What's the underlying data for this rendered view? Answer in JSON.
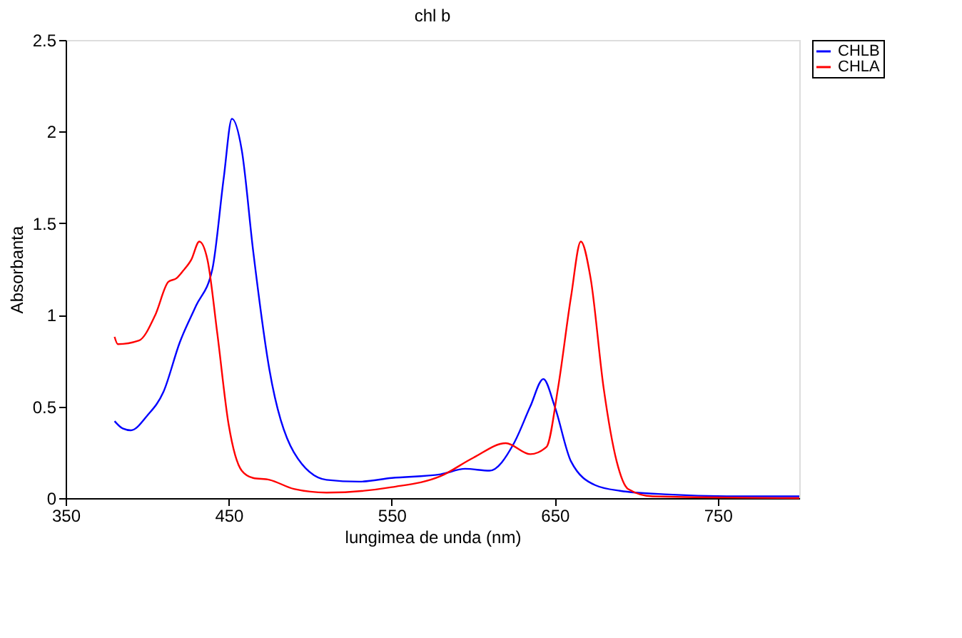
{
  "chart_data": {
    "type": "line",
    "title": "chl b",
    "xlabel": "lungimea de unda (nm)",
    "ylabel": "Absorbanta",
    "xlim": [
      350,
      800
    ],
    "xticks": [
      350,
      450,
      550,
      650,
      750
    ],
    "ylim": [
      0,
      2.5
    ],
    "yticks": [
      0,
      0.5,
      1,
      1.5,
      2,
      2.5
    ],
    "grid": false,
    "legend": "right",
    "marker": "none",
    "line_style": "solid",
    "series": [
      {
        "name": "CHLB",
        "color": "#0000ff",
        "x": [
          380,
          385,
          390,
          400,
          410,
          420,
          430,
          440,
          447,
          452,
          458,
          465,
          475,
          490,
          510,
          530,
          550,
          580,
          595,
          610,
          625,
          635,
          643,
          650,
          660,
          675,
          690,
          720,
          760,
          800
        ],
        "values": [
          0.42,
          0.38,
          0.37,
          0.45,
          0.58,
          0.85,
          1.05,
          1.25,
          1.75,
          2.07,
          1.9,
          1.35,
          0.7,
          0.25,
          0.1,
          0.09,
          0.11,
          0.13,
          0.16,
          0.15,
          0.3,
          0.5,
          0.65,
          0.5,
          0.2,
          0.07,
          0.04,
          0.02,
          0.01,
          0.01
        ]
      },
      {
        "name": "CHLA",
        "color": "#ff0000",
        "x": [
          380,
          382,
          395,
          405,
          413,
          418,
          422,
          427,
          432,
          437,
          443,
          450,
          458,
          465,
          475,
          490,
          510,
          550,
          580,
          600,
          620,
          635,
          645,
          652,
          660,
          666,
          672,
          680,
          688,
          695,
          710,
          800
        ],
        "values": [
          0.88,
          0.84,
          0.86,
          1.0,
          1.18,
          1.2,
          1.24,
          1.3,
          1.4,
          1.3,
          0.9,
          0.4,
          0.15,
          0.11,
          0.1,
          0.05,
          0.03,
          0.06,
          0.12,
          0.22,
          0.3,
          0.24,
          0.28,
          0.6,
          1.1,
          1.4,
          1.2,
          0.6,
          0.2,
          0.05,
          0.01,
          0.0
        ]
      }
    ]
  }
}
